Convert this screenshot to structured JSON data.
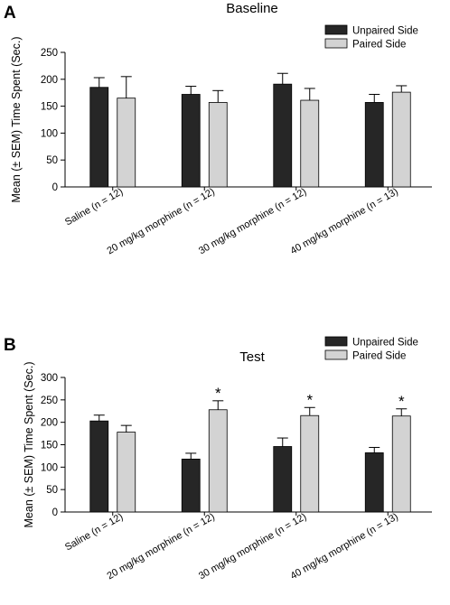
{
  "chart_data": [
    {
      "panel_label": "A",
      "type": "bar",
      "title": "Baseline",
      "ylabel": "Mean (± SEM) Time Spent (Sec.)",
      "xlabel": "",
      "ylim": [
        0,
        250
      ],
      "yticks": [
        0,
        50,
        100,
        150,
        200,
        250
      ],
      "categories": [
        "Saline (n = 12)",
        "20 mg/kg morphine (n = 12)",
        "30 mg/kg morphine (n = 12)",
        "40 mg/kg morphine (n = 13)"
      ],
      "series": [
        {
          "name": "Unpaired Side",
          "color": "#262626",
          "values": [
            185,
            172,
            191,
            157
          ],
          "errors": [
            18,
            15,
            20,
            15
          ]
        },
        {
          "name": "Paired Side",
          "color": "#d3d3d3",
          "values": [
            165,
            157,
            161,
            176
          ],
          "errors": [
            40,
            22,
            22,
            12
          ]
        }
      ],
      "significance": [
        "",
        "",
        "",
        ""
      ],
      "legend_position": "top-right",
      "grid": false
    },
    {
      "panel_label": "B",
      "type": "bar",
      "title": "Test",
      "ylabel": "Mean (± SEM) Time Spent (Sec.)",
      "xlabel": "",
      "ylim": [
        0,
        300
      ],
      "yticks": [
        0,
        50,
        100,
        150,
        200,
        250,
        300
      ],
      "categories": [
        "Saline (n = 12)",
        "20 mg/kg morphine (n = 12)",
        "30 mg/kg morphine (n = 12)",
        "40 mg/kg morphine (n = 13)"
      ],
      "series": [
        {
          "name": "Unpaired Side",
          "color": "#262626",
          "values": [
            203,
            118,
            146,
            132
          ],
          "errors": [
            13,
            13,
            19,
            12
          ]
        },
        {
          "name": "Paired Side",
          "color": "#d3d3d3",
          "values": [
            178,
            228,
            215,
            214
          ],
          "errors": [
            15,
            20,
            18,
            16
          ]
        }
      ],
      "significance": [
        "",
        "*",
        "*",
        "*"
      ],
      "legend_position": "top-right",
      "grid": false
    }
  ]
}
